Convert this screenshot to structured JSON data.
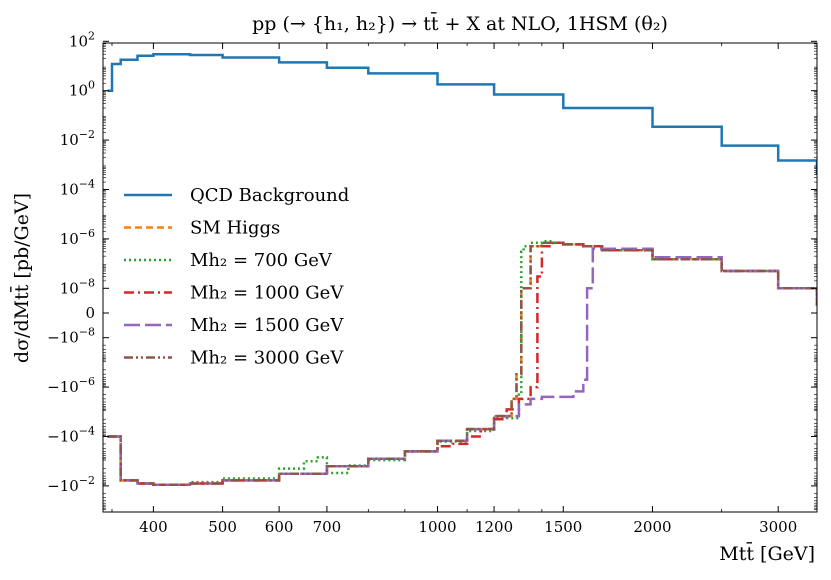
{
  "chart_data": {
    "type": "line",
    "title": "pp (→ {h₁, h₂}) → tt̄ + X at NLO,    1HSM (θ₂)",
    "xlabel": "Mtt̄ [GeV]",
    "ylabel": "dσ/dMtt̄ [pb/GeV]",
    "xscale": "log",
    "yscale": "symlog",
    "xlim": [
      340,
      3400
    ],
    "ylim": [
      -0.1,
      100.0
    ],
    "x_ticks": [
      400,
      500,
      600,
      700,
      1000,
      1200,
      1500,
      2000,
      3000
    ],
    "x_tick_labels": [
      "400",
      "500",
      "600",
      "700",
      "1000",
      "1200",
      "1500",
      "2000",
      "3000"
    ],
    "y_ticks": [
      100,
      1,
      0.01,
      0.0001,
      1e-06,
      1e-08,
      0,
      -1e-08,
      -1e-06,
      -0.0001,
      -0.01
    ],
    "y_tick_labels": [
      "10^2",
      "10^0",
      "10^-2",
      "10^-4",
      "10^-6",
      "10^-8",
      "0",
      "−10^-8",
      "−10^-6",
      "−10^-4",
      "−10^-2"
    ],
    "legend_position": "center-left",
    "series": [
      {
        "name": "QCD Background",
        "color": "#1f77b4",
        "style": "solid",
        "x": [
          345,
          350,
          360,
          380,
          400,
          420,
          450,
          500,
          600,
          700,
          800,
          1000,
          1200,
          1500,
          2000,
          2500,
          3000,
          3400
        ],
        "values": [
          1,
          12,
          18,
          26,
          30,
          30,
          28,
          22,
          14,
          8.5,
          5,
          1.8,
          0.7,
          0.2,
          0.035,
          0.006,
          0.0015,
          0.0004
        ]
      },
      {
        "name": "SM Higgs",
        "color": "#ff7f0e",
        "style": "dashed",
        "x": [
          345,
          350,
          360,
          380,
          400,
          450,
          500,
          600,
          700,
          800,
          900,
          1000,
          1100,
          1200,
          1270,
          1290,
          1310,
          1350,
          1400,
          1450,
          1500,
          1600,
          1700,
          2000,
          2500,
          3000,
          3400
        ],
        "values": [
          -0.0001,
          -0.0001,
          -0.006,
          -0.008,
          -0.009,
          -0.008,
          -0.006,
          -0.0032,
          -0.0016,
          -0.0008,
          -0.0004,
          -0.00015,
          -5e-05,
          -1.5e-05,
          -3e-06,
          -3e-07,
          1e-08,
          5e-07,
          7e-07,
          7e-07,
          6e-07,
          5e-07,
          3.5e-07,
          1.5e-07,
          5e-08,
          1e-08,
          3e-09
        ]
      },
      {
        "name": "Mh₂ = 700 GeV",
        "color": "#2ca02c",
        "style": "dotted",
        "x": [
          345,
          350,
          360,
          380,
          400,
          450,
          500,
          600,
          650,
          680,
          700,
          720,
          750,
          800,
          900,
          1000,
          1100,
          1200,
          1300,
          1310,
          1320,
          1350,
          1400,
          1450,
          1500,
          1600,
          1700,
          2000,
          2500,
          3000,
          3400
        ],
        "values": [
          -0.0001,
          -0.0001,
          -0.006,
          -0.008,
          -0.009,
          -0.007,
          -0.005,
          -0.002,
          -0.001,
          -0.0007,
          -0.003,
          -0.003,
          -0.0015,
          -0.0009,
          -0.0004,
          -0.00016,
          -6e-05,
          -1.8e-05,
          -2e-06,
          3e-07,
          5e-07,
          7e-07,
          8e-07,
          7e-07,
          6e-07,
          5e-07,
          3.5e-07,
          1.5e-07,
          5e-08,
          1e-08,
          3e-09
        ]
      },
      {
        "name": "Mh₂ = 1000 GeV",
        "color": "#d62728",
        "style": "dashdot",
        "x": [
          345,
          350,
          360,
          380,
          400,
          450,
          500,
          600,
          700,
          800,
          900,
          1000,
          1050,
          1100,
          1150,
          1200,
          1250,
          1300,
          1350,
          1380,
          1400,
          1450,
          1500,
          1600,
          1700,
          2000,
          2500,
          3000,
          3400
        ],
        "values": [
          -0.0001,
          -0.0001,
          -0.006,
          -0.008,
          -0.009,
          -0.008,
          -0.006,
          -0.0032,
          -0.0016,
          -0.0008,
          -0.0004,
          -0.00025,
          -0.0002,
          -0.0001,
          -5e-05,
          -2e-05,
          -8e-06,
          -3e-06,
          -1e-06,
          3e-08,
          5e-07,
          7e-07,
          6e-07,
          5e-07,
          3.5e-07,
          1.5e-07,
          5e-08,
          1e-08,
          3e-09
        ]
      },
      {
        "name": "Mh₂ = 1500 GeV",
        "color": "#9467bd",
        "style": "longdash",
        "x": [
          345,
          350,
          360,
          380,
          400,
          450,
          500,
          600,
          700,
          800,
          900,
          1000,
          1100,
          1200,
          1300,
          1350,
          1400,
          1450,
          1500,
          1550,
          1600,
          1620,
          1650,
          1700,
          2000,
          2500,
          3000,
          3400
        ],
        "values": [
          -0.0001,
          -0.0001,
          -0.006,
          -0.008,
          -0.009,
          -0.008,
          -0.006,
          -0.0032,
          -0.0016,
          -0.0008,
          -0.0004,
          -0.00015,
          -5e-05,
          -1.5e-05,
          -5e-06,
          -3e-06,
          -2.5e-06,
          -2.5e-06,
          -2.5e-06,
          -1.5e-06,
          -5e-07,
          1e-08,
          4e-07,
          4e-07,
          1.8e-07,
          5e-08,
          1e-08,
          3e-09
        ]
      },
      {
        "name": "Mh₂ = 3000 GeV",
        "color": "#8c564b",
        "style": "dashdotdot",
        "x": [
          345,
          350,
          360,
          380,
          400,
          450,
          500,
          600,
          700,
          800,
          900,
          1000,
          1100,
          1200,
          1270,
          1290,
          1310,
          1350,
          1400,
          1450,
          1500,
          1600,
          1700,
          2000,
          2500,
          3000,
          3400
        ],
        "values": [
          -0.0001,
          -0.0001,
          -0.006,
          -0.008,
          -0.009,
          -0.008,
          -0.006,
          -0.0032,
          -0.0016,
          -0.0008,
          -0.0004,
          -0.00015,
          -5e-05,
          -1.5e-05,
          -3e-06,
          -3e-07,
          1e-08,
          5e-07,
          7e-07,
          7e-07,
          6e-07,
          5e-07,
          3.5e-07,
          1.5e-07,
          5e-08,
          1e-08,
          3e-09
        ]
      }
    ]
  }
}
